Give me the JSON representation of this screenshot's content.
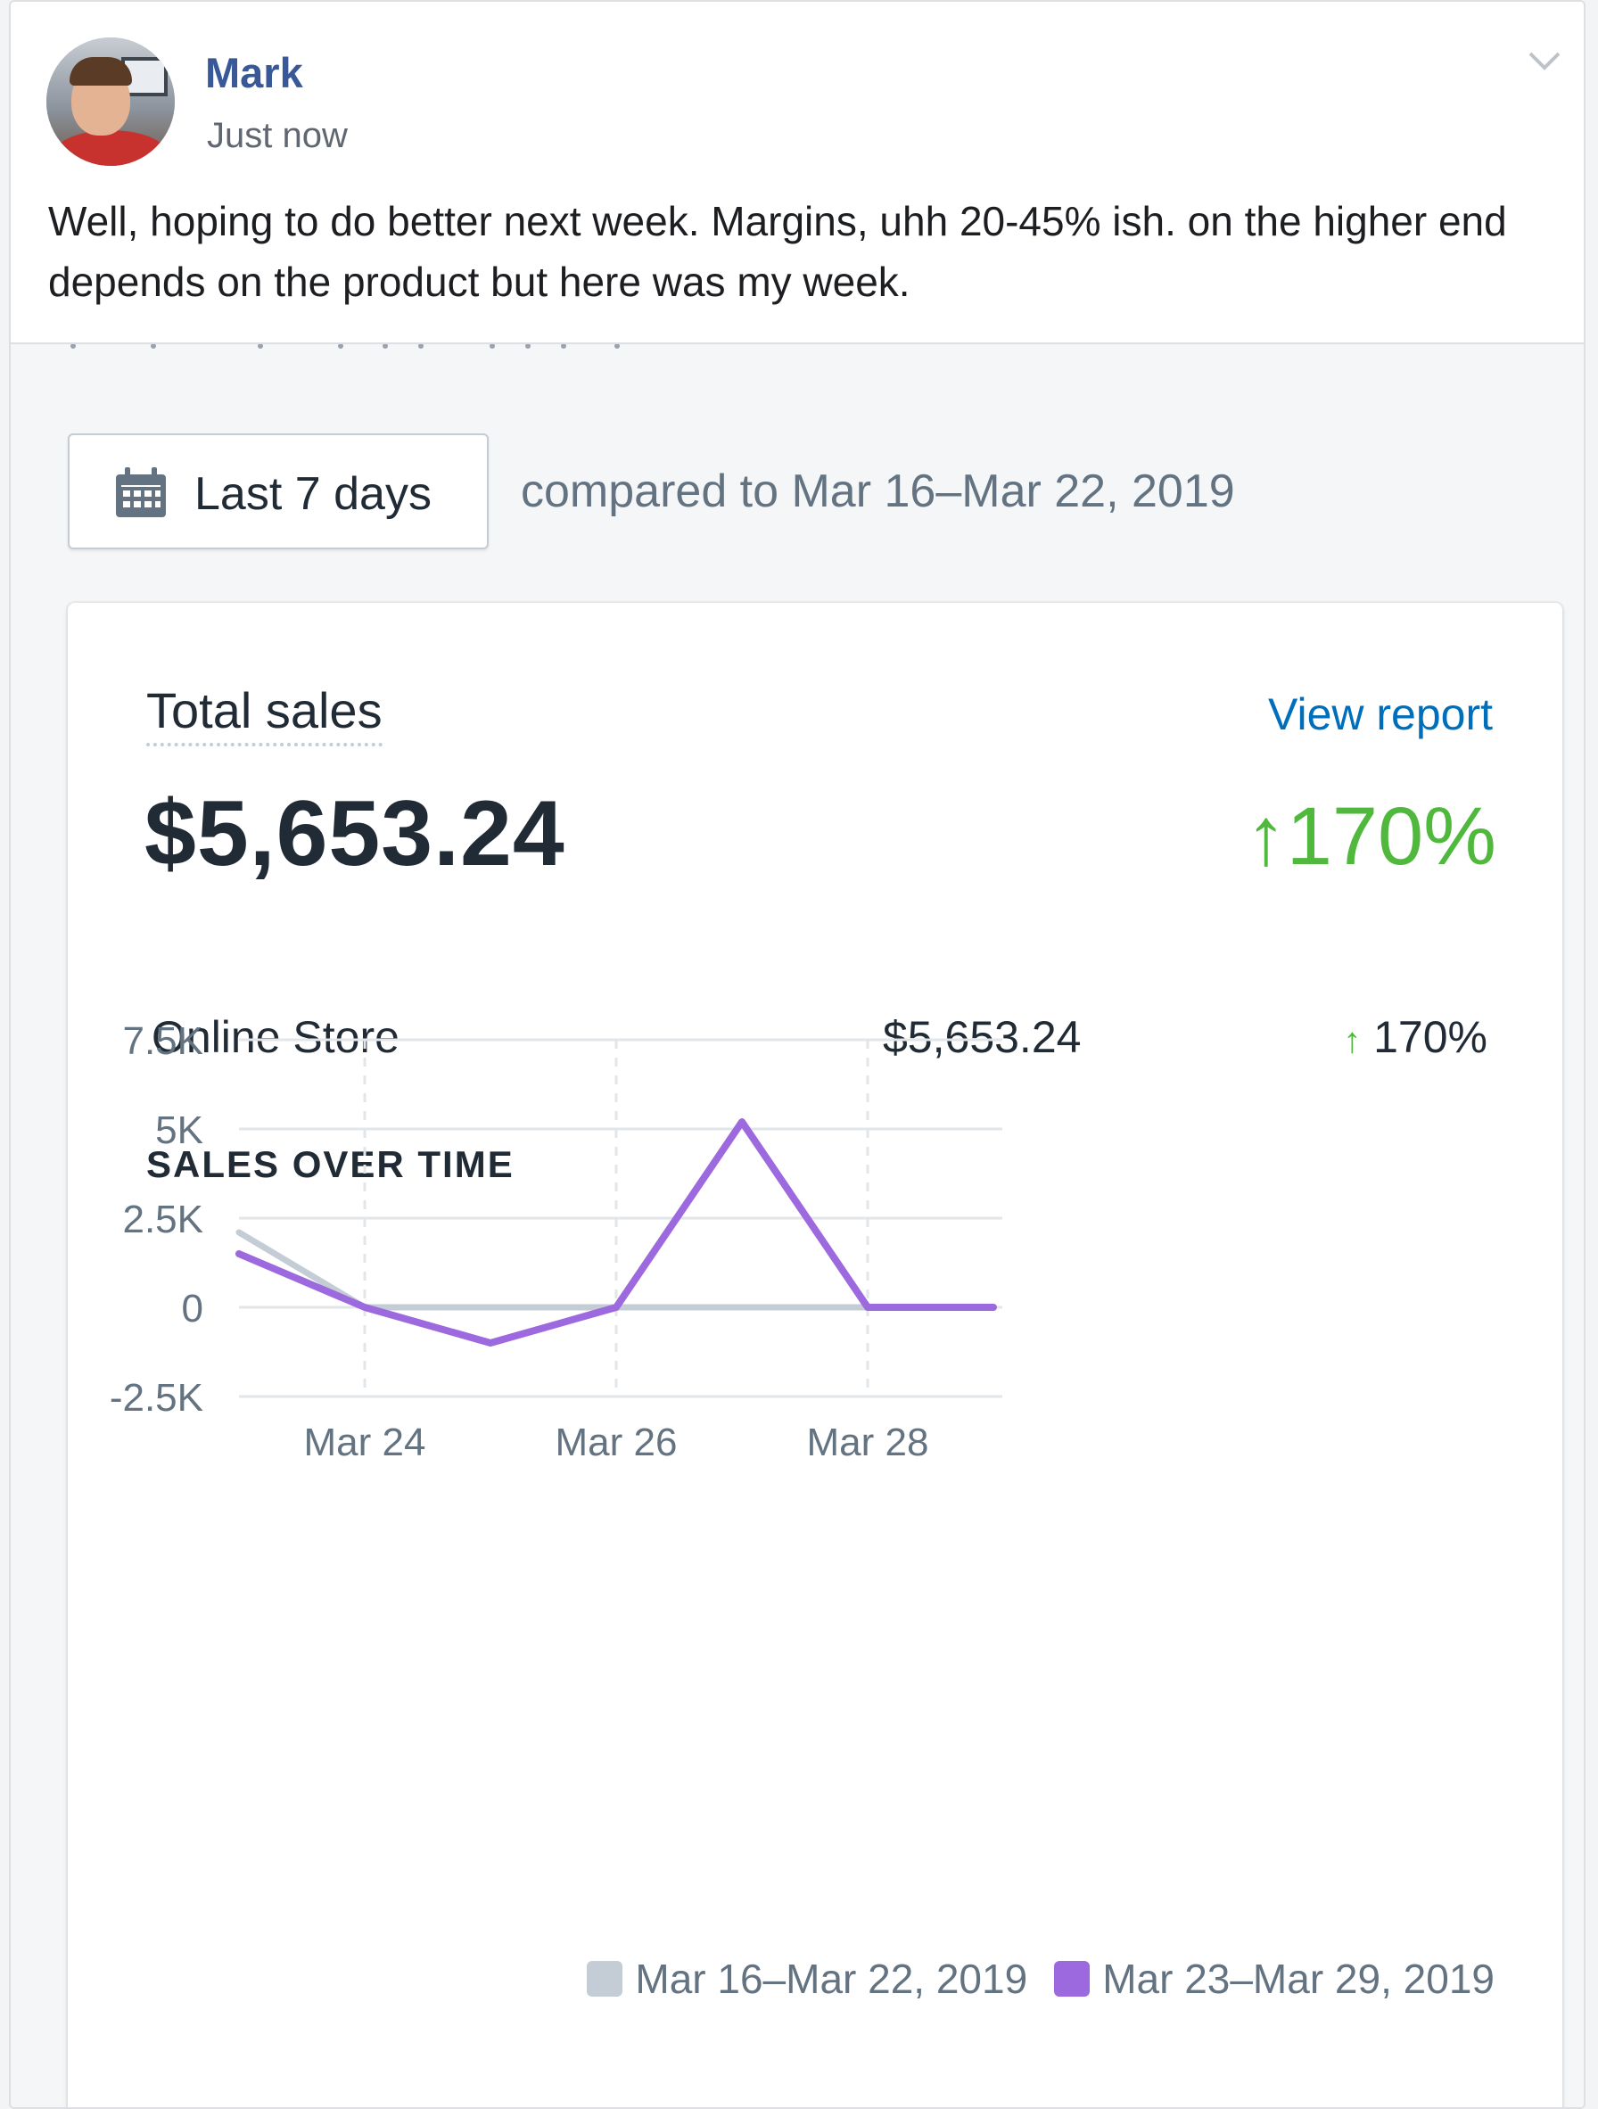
{
  "post": {
    "author": "Mark",
    "timestamp": "Just now",
    "text": "Well, hoping to do better next week. Margins, uhh 20-45% ish. on the higher end depends on the product but here was my week."
  },
  "report": {
    "date_range_label": "Last 7 days",
    "compare_text": "compared to Mar 16–Mar 22, 2019",
    "title": "Total sales",
    "view_report": "View report",
    "total_value": "$5,653.24",
    "total_change_arrow": "↑",
    "total_change": "170%",
    "rows": [
      {
        "label": "Online Store",
        "value": "$5,653.24",
        "arrow": "↑",
        "change": "170%"
      }
    ],
    "section_title": "SALES OVER TIME"
  },
  "colors": {
    "accent_link": "#006fbb",
    "positive": "#50b83c",
    "current_series": "#9c6ade",
    "previous_series": "#c4cdd5"
  },
  "icons": [
    "calendar-icon",
    "chevron-down-icon",
    "arrow-up-icon"
  ],
  "chart_data": {
    "type": "line",
    "title": "SALES OVER TIME",
    "x": [
      "Mar 23",
      "Mar 24",
      "Mar 25",
      "Mar 26",
      "Mar 27",
      "Mar 28",
      "Mar 29"
    ],
    "x_tick_labels": [
      "Mar 24",
      "Mar 26",
      "Mar 28"
    ],
    "y_tick_labels": [
      "7.5K",
      "5K",
      "2.5K",
      "0",
      "-2.5K"
    ],
    "y_ticks": [
      7500,
      5000,
      2500,
      0,
      -2500
    ],
    "ylim": [
      -2500,
      7500
    ],
    "grid": true,
    "legend_position": "bottom-right",
    "series": [
      {
        "name": "Mar 16–Mar 22, 2019",
        "color": "#c4cdd5",
        "values": [
          2100,
          0,
          0,
          0,
          0,
          0,
          0
        ]
      },
      {
        "name": "Mar 23–Mar 29, 2019",
        "color": "#9c6ade",
        "values": [
          1500,
          0,
          -1000,
          0,
          5200,
          0,
          0
        ]
      }
    ]
  }
}
